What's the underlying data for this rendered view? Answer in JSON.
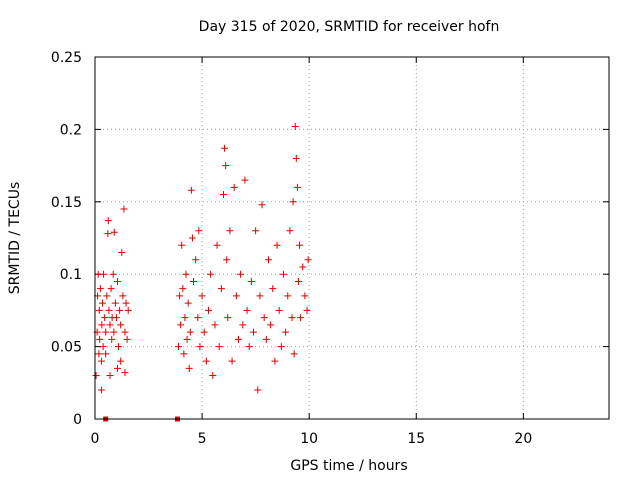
{
  "chart_data": {
    "type": "scatter",
    "title": "Day 315 of 2020, SRMTID for receiver hofn",
    "xlabel": "GPS time / hours",
    "ylabel": "SRMTID / TECUs",
    "xlim": [
      0,
      24
    ],
    "ylim": [
      0,
      0.25
    ],
    "xticks": [
      0,
      5,
      10,
      15,
      20
    ],
    "xtick_labels": [
      "0",
      "5",
      "10",
      "15",
      "20"
    ],
    "yticks": [
      0,
      0.05,
      0.1,
      0.15,
      0.2,
      0.25
    ],
    "ytick_labels": [
      "0",
      "0.05",
      "0.1",
      "0.15",
      "0.2",
      "0.25"
    ],
    "grid": true,
    "series": [
      {
        "name": "SRMTID",
        "marker": "plus",
        "color": "#e00000",
        "points": [
          [
            0.05,
            0.03
          ],
          [
            0.1,
            0.06
          ],
          [
            0.12,
            0.085
          ],
          [
            0.15,
            0.1
          ],
          [
            0.18,
            0.045
          ],
          [
            0.2,
            0.075
          ],
          [
            0.22,
            0.055
          ],
          [
            0.25,
            0.09
          ],
          [
            0.3,
            0.04
          ],
          [
            0.32,
            0.065
          ],
          [
            0.35,
            0.08
          ],
          [
            0.38,
            0.05
          ],
          [
            0.4,
            0.1
          ],
          [
            0.45,
            0.07
          ],
          [
            0.5,
            0.06
          ],
          [
            0.55,
            0.085
          ],
          [
            0.6,
            0.128
          ],
          [
            0.62,
            0.137
          ],
          [
            0.65,
            0.075
          ],
          [
            0.7,
            0.065
          ],
          [
            0.75,
            0.09
          ],
          [
            0.78,
            0.055
          ],
          [
            0.8,
            0.07
          ],
          [
            0.85,
            0.1
          ],
          [
            0.88,
            0.06
          ],
          [
            0.9,
            0.129
          ],
          [
            0.95,
            0.08
          ],
          [
            1.0,
            0.07
          ],
          [
            1.05,
            0.095
          ],
          [
            1.1,
            0.05
          ],
          [
            1.15,
            0.075
          ],
          [
            1.2,
            0.065
          ],
          [
            1.25,
            0.115
          ],
          [
            1.3,
            0.085
          ],
          [
            1.35,
            0.145
          ],
          [
            1.4,
            0.06
          ],
          [
            1.45,
            0.08
          ],
          [
            1.5,
            0.055
          ],
          [
            1.55,
            0.075
          ],
          [
            1.05,
            0.035
          ],
          [
            0.3,
            0.02
          ],
          [
            0.7,
            0.03
          ],
          [
            1.2,
            0.04
          ],
          [
            1.4,
            0.032
          ],
          [
            0.5,
            0.045
          ],
          [
            3.9,
            0.05
          ],
          [
            3.95,
            0.085
          ],
          [
            4.0,
            0.065
          ],
          [
            4.05,
            0.12
          ],
          [
            4.1,
            0.09
          ],
          [
            4.15,
            0.045
          ],
          [
            4.2,
            0.07
          ],
          [
            4.25,
            0.1
          ],
          [
            4.3,
            0.055
          ],
          [
            4.35,
            0.08
          ],
          [
            4.4,
            0.035
          ],
          [
            4.45,
            0.06
          ],
          [
            4.5,
            0.158
          ],
          [
            4.55,
            0.125
          ],
          [
            4.6,
            0.095
          ],
          [
            4.7,
            0.11
          ],
          [
            4.8,
            0.07
          ],
          [
            4.85,
            0.13
          ],
          [
            4.9,
            0.05
          ],
          [
            5.0,
            0.085
          ],
          [
            5.1,
            0.06
          ],
          [
            5.2,
            0.04
          ],
          [
            5.3,
            0.075
          ],
          [
            5.4,
            0.1
          ],
          [
            5.5,
            0.03
          ],
          [
            5.6,
            0.065
          ],
          [
            5.7,
            0.12
          ],
          [
            5.8,
            0.05
          ],
          [
            5.9,
            0.09
          ],
          [
            6.0,
            0.155
          ],
          [
            6.05,
            0.187
          ],
          [
            6.1,
            0.175
          ],
          [
            6.15,
            0.11
          ],
          [
            6.2,
            0.07
          ],
          [
            6.3,
            0.13
          ],
          [
            6.4,
            0.04
          ],
          [
            6.5,
            0.16
          ],
          [
            6.6,
            0.085
          ],
          [
            6.7,
            0.055
          ],
          [
            6.8,
            0.1
          ],
          [
            6.9,
            0.065
          ],
          [
            7.0,
            0.165
          ],
          [
            7.1,
            0.075
          ],
          [
            7.2,
            0.05
          ],
          [
            7.3,
            0.095
          ],
          [
            7.4,
            0.06
          ],
          [
            7.5,
            0.13
          ],
          [
            7.6,
            0.02
          ],
          [
            7.7,
            0.085
          ],
          [
            7.8,
            0.148
          ],
          [
            7.9,
            0.07
          ],
          [
            8.0,
            0.055
          ],
          [
            8.1,
            0.11
          ],
          [
            8.2,
            0.065
          ],
          [
            8.3,
            0.09
          ],
          [
            8.4,
            0.04
          ],
          [
            8.5,
            0.12
          ],
          [
            8.6,
            0.075
          ],
          [
            8.7,
            0.05
          ],
          [
            8.8,
            0.1
          ],
          [
            8.9,
            0.06
          ],
          [
            9.0,
            0.085
          ],
          [
            9.1,
            0.13
          ],
          [
            9.2,
            0.07
          ],
          [
            9.25,
            0.15
          ],
          [
            9.3,
            0.045
          ],
          [
            9.35,
            0.202
          ],
          [
            9.4,
            0.18
          ],
          [
            9.45,
            0.16
          ],
          [
            9.5,
            0.095
          ],
          [
            9.55,
            0.12
          ],
          [
            9.6,
            0.07
          ],
          [
            9.7,
            0.105
          ],
          [
            9.8,
            0.085
          ],
          [
            9.9,
            0.075
          ],
          [
            9.95,
            0.11
          ]
        ]
      }
    ],
    "zero_markers": {
      "color": "#e00000",
      "x": [
        0.5,
        3.85
      ],
      "y": [
        0,
        0
      ]
    }
  }
}
